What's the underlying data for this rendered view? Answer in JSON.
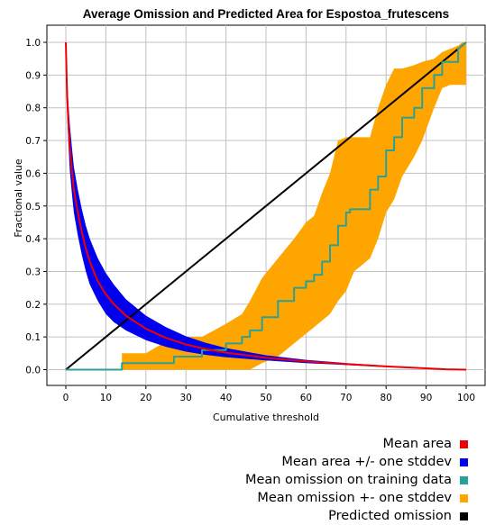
{
  "chart_data": {
    "type": "line",
    "title": "Average Omission and Predicted Area for Espostoa_frutescens",
    "xlabel": "Cumulative threshold",
    "ylabel": "Fractional value",
    "xlim": [
      0,
      100
    ],
    "ylim": [
      0,
      1.0
    ],
    "x_ticks": [
      "0",
      "10",
      "20",
      "30",
      "40",
      "50",
      "60",
      "70",
      "80",
      "90",
      "100"
    ],
    "y_ticks": [
      "0.0",
      "0.1",
      "0.2",
      "0.3",
      "0.4",
      "0.5",
      "0.6",
      "0.7",
      "0.8",
      "0.9",
      "1.0"
    ],
    "grid": true,
    "legend_position": "bottom-right",
    "series": [
      {
        "name": "Mean area",
        "color": "#ee0000",
        "x": [
          0,
          0.3,
          0.6,
          1,
          1.5,
          2,
          3,
          4,
          5,
          6,
          8,
          10,
          12,
          15,
          20,
          25,
          30,
          35,
          40,
          50,
          60,
          70,
          80,
          90,
          95,
          100
        ],
        "values": [
          1.0,
          0.85,
          0.76,
          0.68,
          0.61,
          0.55,
          0.48,
          0.42,
          0.37,
          0.33,
          0.27,
          0.23,
          0.2,
          0.165,
          0.125,
          0.097,
          0.077,
          0.063,
          0.052,
          0.036,
          0.025,
          0.017,
          0.01,
          0.004,
          0.001,
          0.0
        ]
      },
      {
        "name": "Mean area +/- one stddev",
        "color": "#0000ee",
        "x": [
          0,
          0.3,
          0.6,
          1,
          1.5,
          2,
          3,
          4,
          5,
          6,
          8,
          10,
          12,
          15,
          20,
          25,
          30,
          35,
          40,
          50,
          60,
          70,
          80,
          90,
          95,
          100
        ],
        "upper": [
          1.0,
          0.9,
          0.82,
          0.75,
          0.68,
          0.62,
          0.55,
          0.49,
          0.44,
          0.4,
          0.34,
          0.295,
          0.26,
          0.215,
          0.165,
          0.13,
          0.102,
          0.082,
          0.066,
          0.044,
          0.03,
          0.02,
          0.012,
          0.005,
          0.002,
          0.0
        ],
        "lower": [
          1.0,
          0.8,
          0.7,
          0.61,
          0.54,
          0.48,
          0.41,
          0.35,
          0.3,
          0.26,
          0.21,
          0.17,
          0.145,
          0.12,
          0.09,
          0.07,
          0.055,
          0.045,
          0.038,
          0.028,
          0.02,
          0.014,
          0.008,
          0.003,
          0.001,
          0.0
        ]
      },
      {
        "name": "Mean omission on training data",
        "color": "#2aa198",
        "x": [
          0,
          14,
          14,
          27,
          27,
          34,
          34,
          40,
          40,
          44,
          44,
          46,
          46,
          49,
          49,
          53,
          53,
          57,
          57,
          60,
          60,
          62,
          62,
          64,
          64,
          66,
          66,
          68,
          68,
          70,
          70,
          71,
          71,
          76,
          76,
          78,
          78,
          80,
          80,
          82,
          82,
          84,
          84,
          87,
          87,
          89,
          89,
          92,
          92,
          94,
          94,
          98,
          98,
          99,
          100
        ],
        "values": [
          0.0,
          0.0,
          0.02,
          0.02,
          0.04,
          0.04,
          0.06,
          0.06,
          0.08,
          0.08,
          0.1,
          0.1,
          0.12,
          0.12,
          0.16,
          0.16,
          0.21,
          0.21,
          0.25,
          0.25,
          0.27,
          0.27,
          0.29,
          0.29,
          0.33,
          0.33,
          0.38,
          0.38,
          0.44,
          0.44,
          0.48,
          0.48,
          0.49,
          0.49,
          0.55,
          0.55,
          0.59,
          0.59,
          0.67,
          0.67,
          0.71,
          0.71,
          0.77,
          0.77,
          0.8,
          0.8,
          0.86,
          0.86,
          0.9,
          0.9,
          0.94,
          0.94,
          0.98,
          0.99,
          1.0
        ]
      },
      {
        "name": "Mean omission +- one stddev",
        "color": "#ffa500",
        "x": [
          14,
          20,
          27,
          34,
          40,
          44,
          46,
          49,
          53,
          57,
          60,
          62,
          64,
          66,
          68,
          70,
          72,
          74,
          76,
          78,
          80,
          82,
          84,
          87,
          89,
          92,
          94,
          96,
          98,
          99,
          100
        ],
        "upper": [
          0.05,
          0.05,
          0.1,
          0.1,
          0.14,
          0.17,
          0.21,
          0.28,
          0.34,
          0.4,
          0.45,
          0.47,
          0.54,
          0.6,
          0.7,
          0.71,
          0.71,
          0.71,
          0.71,
          0.8,
          0.87,
          0.92,
          0.92,
          0.93,
          0.94,
          0.95,
          0.97,
          0.98,
          0.99,
          1.0,
          1.0
        ],
        "lower": [
          0.0,
          0.0,
          0.0,
          0.0,
          0.0,
          0.0,
          0.0,
          0.02,
          0.04,
          0.08,
          0.11,
          0.13,
          0.15,
          0.17,
          0.21,
          0.24,
          0.3,
          0.32,
          0.34,
          0.4,
          0.48,
          0.52,
          0.59,
          0.65,
          0.7,
          0.8,
          0.86,
          0.87,
          0.87,
          0.87,
          0.87
        ]
      },
      {
        "name": "Predicted omission",
        "color": "#000000",
        "x": [
          0,
          100
        ],
        "values": [
          0.0,
          1.0
        ]
      }
    ]
  }
}
